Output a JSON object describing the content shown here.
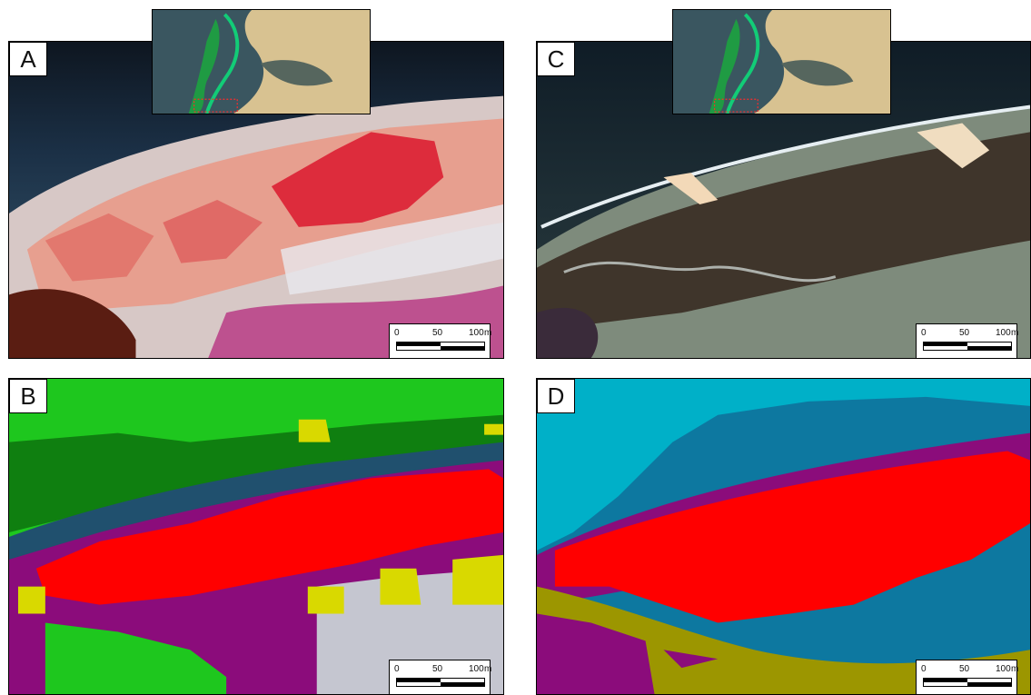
{
  "panels": [
    {
      "id": "A",
      "type": "satellite-true-color"
    },
    {
      "id": "B",
      "type": "classification"
    },
    {
      "id": "C",
      "type": "satellite-true-color-hires"
    },
    {
      "id": "D",
      "type": "classification-hires"
    }
  ],
  "labels": {
    "a": "A",
    "b": "B",
    "c": "C",
    "d": "D"
  },
  "scalebar": {
    "tick_0": "0",
    "tick_mid": "50",
    "tick_end": "100",
    "unit": "m"
  },
  "colors": {
    "classes": {
      "marsh_red": "#ff0000",
      "purple": "#8b0c7b",
      "olive": "#9c9600",
      "green_bright": "#1ec71e",
      "green_dark": "#0f7f10",
      "yellow": "#d9d900",
      "water_light_blue": "#00b0c8",
      "water_dark_blue": "#0d78a0"
    }
  }
}
